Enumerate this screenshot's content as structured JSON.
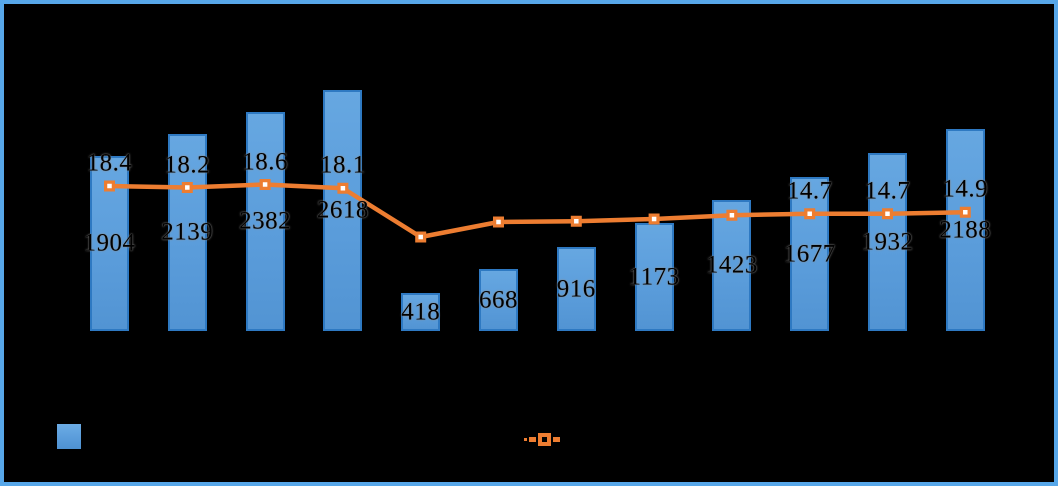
{
  "window": {
    "background_color": "#000000",
    "frame_color": "#57A7E9"
  },
  "chart_data": {
    "type": "bar+line",
    "title": "",
    "x_count": 12,
    "x_tick_labels_visible": false,
    "axes_visible": false,
    "grid": false,
    "label_color": "#000000",
    "series": [
      {
        "name": "bar-series",
        "type": "bar",
        "fill_color": "#5B9DDB",
        "border_color": "#2E79C2",
        "values": [
          1904,
          2139,
          2382,
          2618,
          418,
          668,
          916,
          1173,
          1423,
          1677,
          1932,
          2188
        ],
        "data_labels": [
          "1904",
          "2139",
          "2382",
          "2618",
          "418",
          "668",
          "916",
          "1173",
          "1423",
          "1677",
          "1932",
          "2188"
        ]
      },
      {
        "name": "line-series",
        "type": "line",
        "color": "#ED7D31",
        "marker": "square-with-white-center",
        "values": [
          18.4,
          18.2,
          18.6,
          18.1,
          11.6,
          13.6,
          13.7,
          14.0,
          14.5,
          14.7,
          14.7,
          14.9
        ],
        "data_labels": [
          "18.4",
          "18.2",
          "18.6",
          "18.1",
          "",
          "",
          "",
          "",
          "",
          "14.7",
          "14.7",
          "14.9"
        ]
      }
    ],
    "legend": {
      "position": "bottom",
      "entries": [
        {
          "swatch": "blue-square",
          "label": ""
        },
        {
          "swatch": "orange-dashed-line-with-square-marker",
          "label": ""
        }
      ],
      "labels_visible": false
    }
  }
}
